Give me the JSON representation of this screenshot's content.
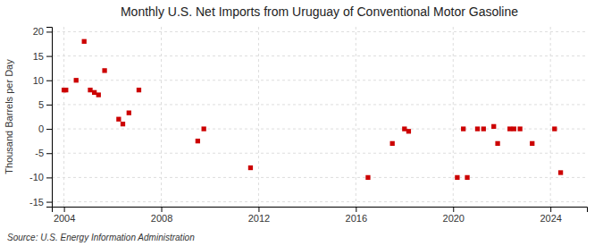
{
  "chart_data": {
    "type": "scatter",
    "title": "Monthly U.S. Net Imports from Uruguay of Conventional Motor Gasoline",
    "ylabel": "Thousand Barrels per Day",
    "source": "Source: U.S. Energy Information Administration",
    "color": "#cc0000",
    "marker": "square",
    "grid": true,
    "xlim": [
      2003.5,
      2025.5
    ],
    "ylim": [
      -16,
      21
    ],
    "xticks": [
      2004,
      2008,
      2012,
      2016,
      2020,
      2024
    ],
    "yticks": [
      -15,
      -10,
      -5,
      0,
      5,
      10,
      15,
      20
    ],
    "x": [
      2004.0,
      2004.08,
      2004.5,
      2004.83,
      2005.08,
      2005.25,
      2005.42,
      2005.67,
      2006.25,
      2006.42,
      2006.67,
      2007.08,
      2009.5,
      2009.75,
      2011.67,
      2016.5,
      2017.5,
      2018.0,
      2018.17,
      2020.17,
      2020.42,
      2020.58,
      2021.0,
      2021.25,
      2021.67,
      2021.83,
      2022.33,
      2022.5,
      2022.75,
      2023.25,
      2024.17,
      2024.42
    ],
    "values": [
      8.0,
      8.0,
      10.0,
      18.0,
      8.0,
      7.5,
      7.0,
      12.0,
      2.0,
      1.0,
      3.3,
      8.0,
      -2.5,
      0.0,
      -8.0,
      -10.0,
      -3.0,
      0.0,
      -0.5,
      -10.0,
      0.0,
      -10.0,
      0.0,
      0.0,
      0.5,
      -3.0,
      0.0,
      0.0,
      0.0,
      -3.0,
      0.0,
      -9.0
    ]
  }
}
